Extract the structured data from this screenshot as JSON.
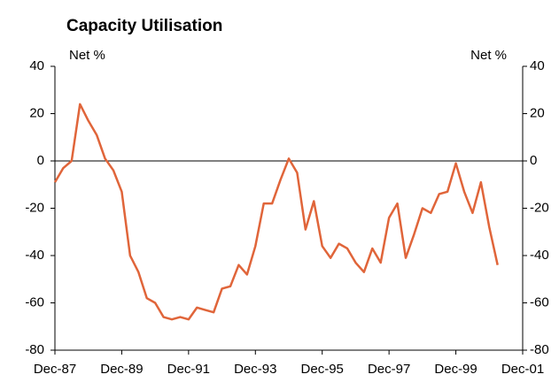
{
  "chart_data": {
    "type": "line",
    "title": "Capacity Utilisation",
    "ylabel": "Net %",
    "y2label": "Net %",
    "x": [
      1987.92,
      1988.17,
      1988.42,
      1988.67,
      1988.92,
      1989.17,
      1989.42,
      1989.67,
      1989.92,
      1990.17,
      1990.42,
      1990.67,
      1990.92,
      1991.17,
      1991.42,
      1991.67,
      1991.92,
      1992.17,
      1992.42,
      1992.67,
      1992.92,
      1993.17,
      1993.42,
      1993.67,
      1993.92,
      1994.17,
      1994.42,
      1994.67,
      1994.92,
      1995.17,
      1995.42,
      1995.67,
      1995.92,
      1996.17,
      1996.42,
      1996.67,
      1996.92,
      1997.17,
      1997.42,
      1997.67,
      1997.92,
      1998.17,
      1998.42,
      1998.67,
      1998.92,
      1999.17,
      1999.42,
      1999.67,
      1999.92,
      2000.17,
      2000.42,
      2000.67,
      2000.92,
      2001.17
    ],
    "series": [
      {
        "name": "Capacity Utilisation",
        "color": "#e0653a",
        "values": [
          -9,
          -3,
          0,
          24,
          17,
          11,
          1,
          -4,
          -13,
          -40,
          -47,
          -58,
          -60,
          -66,
          -67,
          -66,
          -67,
          -62,
          -63,
          -64,
          -54,
          -53,
          -44,
          -48,
          -36,
          -18,
          -18,
          -8,
          1,
          -5,
          -29,
          -17,
          -36,
          -41,
          -35,
          -37,
          -43,
          -47,
          -37,
          -43,
          -24,
          -18,
          -41,
          -31,
          -20,
          -22,
          -14,
          -13,
          -1,
          -13,
          -22,
          -9,
          -28,
          -44
        ]
      }
    ],
    "xlim": [
      1987.92,
      2001.92
    ],
    "xticks": [
      {
        "value": 1987.92,
        "label": "Dec-87"
      },
      {
        "value": 1989.92,
        "label": "Dec-89"
      },
      {
        "value": 1991.92,
        "label": "Dec-91"
      },
      {
        "value": 1993.92,
        "label": "Dec-93"
      },
      {
        "value": 1995.92,
        "label": "Dec-95"
      },
      {
        "value": 1997.92,
        "label": "Dec-97"
      },
      {
        "value": 1999.92,
        "label": "Dec-99"
      },
      {
        "value": 2001.92,
        "label": "Dec-01"
      }
    ],
    "ylim": [
      -80,
      40
    ],
    "yticks": [
      -80,
      -60,
      -40,
      -20,
      0,
      20,
      40
    ],
    "y2lim": [
      -80,
      40
    ],
    "y2ticks": [
      -80,
      -60,
      -40,
      -20,
      0,
      20,
      40
    ],
    "grid": false
  }
}
